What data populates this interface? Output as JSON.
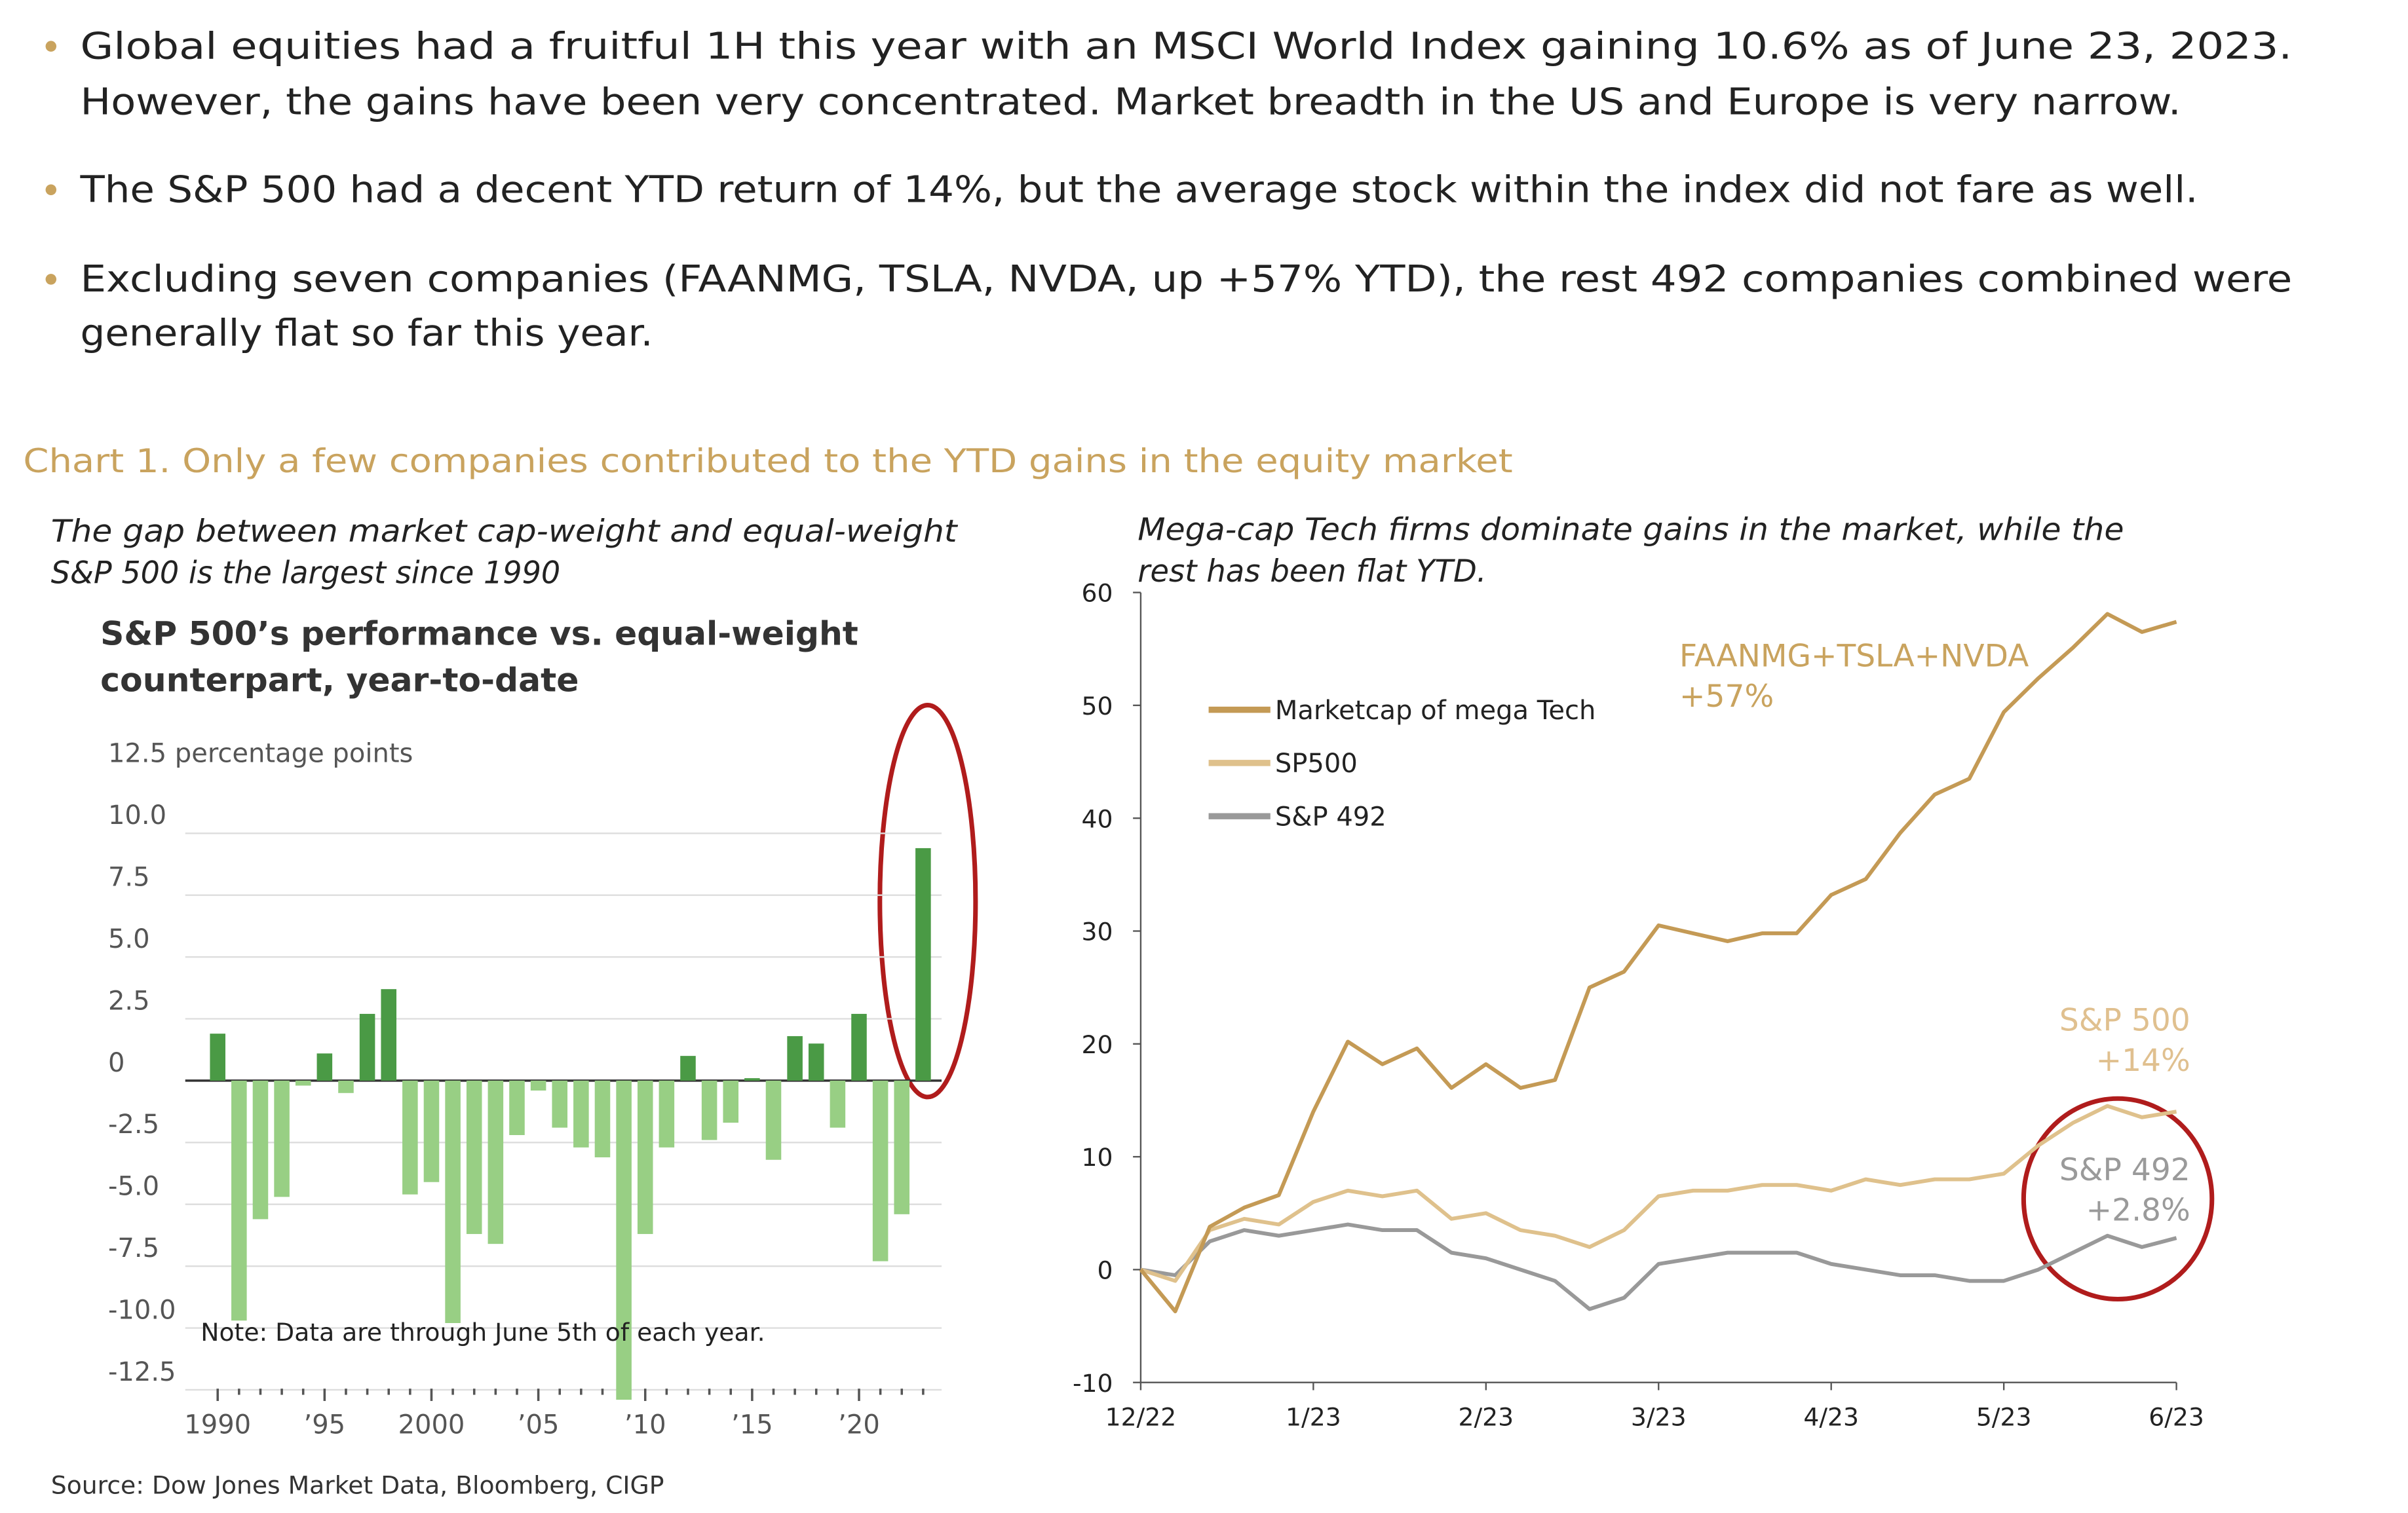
{
  "bullets": [
    {
      "lines": [
        "Global equities had a fruitful 1H this year with an MSCI World Index gaining 10.6% as of June 23, 2023.",
        "However, the gains have been very concentrated. Market breadth in the US and Europe is very narrow."
      ]
    },
    {
      "lines": [
        "The S&P 500 had a decent YTD return of 14%, but the average stock within the index did not fare as well."
      ]
    },
    {
      "lines": [
        "Excluding seven companies (FAANMG, TSLA, NVDA, up +57% YTD), the rest 492 companies combined were",
        "generally flat so far this year."
      ]
    }
  ],
  "chart_caption": "Chart 1. Only a few companies contributed to the YTD gains in the equity market",
  "source": "Source: Dow Jones Market Data, Bloomberg, CIGP",
  "chart_data": [
    {
      "type": "bar",
      "subtitle": [
        "The gap between market cap-weight and equal-weight",
        "S&P 500 is the largest since 1990"
      ],
      "title": [
        "S&P 500’s performance vs. equal-weight",
        "counterpart, year-to-date"
      ],
      "note": "Note: Data are through June 5th of each year.",
      "categories": [
        "1990",
        null,
        null,
        null,
        null,
        "’95",
        null,
        null,
        null,
        null,
        "2000",
        null,
        null,
        null,
        null,
        "’05",
        null,
        null,
        null,
        null,
        "’10",
        null,
        null,
        null,
        null,
        "’15",
        null,
        null,
        null,
        null,
        "’20",
        null,
        null,
        null
      ],
      "values": [
        1.9,
        -9.7,
        -5.6,
        -4.7,
        -0.2,
        1.1,
        -0.5,
        2.7,
        3.7,
        -4.6,
        -4.1,
        -9.8,
        -6.2,
        -6.6,
        -2.2,
        -0.4,
        -1.9,
        -2.7,
        -3.1,
        -12.9,
        -6.2,
        -2.7,
        1.0,
        -2.4,
        -1.7,
        0.1,
        -3.2,
        1.8,
        1.5,
        -1.9,
        2.7,
        -7.3,
        -5.4,
        9.4
      ],
      "color": "#4a9a45",
      "negative_color": "#98cf84",
      "ylim": [
        -13.2,
        12.5
      ],
      "yticks": [
        {
          "value": 12.5,
          "label": "12.5 percentage points"
        },
        {
          "value": 10,
          "label": "10.0"
        },
        7.5,
        {
          "value": 5,
          "label": "5.0"
        },
        2.5,
        0,
        -2.5,
        {
          "value": -5,
          "label": "-5.0"
        },
        -7.5,
        {
          "value": -10,
          "label": "-10.0"
        },
        -12.5
      ],
      "grid": true
    },
    {
      "type": "line",
      "subtitle": [
        "Mega-cap Tech firms dominate gains in the market, while the",
        "rest has been flat YTD."
      ],
      "x": [
        0,
        0.2,
        0.4,
        0.6,
        0.8,
        1.0,
        1.2,
        1.4,
        1.6,
        1.8,
        2.0,
        2.2,
        2.4,
        2.6,
        2.8,
        3.0,
        3.2,
        3.4,
        3.6,
        3.8,
        4.0,
        4.2,
        4.4,
        4.6,
        4.8,
        5.0,
        5.2,
        5.4,
        5.6,
        5.8,
        6.0
      ],
      "xlim": [
        0,
        6
      ],
      "xticks": [
        {
          "value": 0,
          "label": "12/22"
        },
        {
          "value": 1,
          "label": "1/23"
        },
        {
          "value": 2,
          "label": "2/23"
        },
        {
          "value": 3,
          "label": "3/23"
        },
        {
          "value": 4,
          "label": "4/23"
        },
        {
          "value": 5,
          "label": "5/23"
        },
        {
          "value": 6,
          "label": "6/23"
        }
      ],
      "ylim": [
        -10,
        60
      ],
      "yticks": [
        -10,
        0,
        10,
        20,
        30,
        40,
        50,
        60
      ],
      "series": [
        {
          "name": "Marketcap of mega Tech",
          "color": "#c49a55",
          "values": [
            0,
            -3.7,
            3.8,
            5.5,
            6.6,
            14,
            20.2,
            18.2,
            19.6,
            16.1,
            18.2,
            16.1,
            16.8,
            25,
            26.4,
            30.5,
            29.8,
            29.1,
            29.8,
            29.8,
            33.2,
            34.6,
            38.7,
            42.1,
            43.5,
            49.4,
            52.4,
            55.1,
            58.1,
            56.5,
            57.4
          ]
        },
        {
          "name": "SP500",
          "color": "#dfc18c",
          "values": [
            0,
            -1,
            3.5,
            4.5,
            4,
            6,
            7,
            6.5,
            7,
            4.5,
            5,
            3.5,
            3,
            2,
            3.5,
            6.5,
            7,
            7,
            7.5,
            7.5,
            7,
            8,
            7.5,
            8,
            8,
            8.5,
            11,
            13,
            14.5,
            13.5,
            14
          ]
        },
        {
          "name": "S&P 492",
          "color": "#999999",
          "values": [
            0,
            -0.5,
            2.5,
            3.5,
            3,
            3.5,
            4,
            3.5,
            3.5,
            1.5,
            1,
            0,
            -1,
            -3.5,
            -2.5,
            0.5,
            1,
            1.5,
            1.5,
            1.5,
            0.5,
            0,
            -0.5,
            -0.5,
            -1,
            -1,
            0,
            1.5,
            3,
            2,
            2.8
          ]
        }
      ],
      "annotations": [
        {
          "lines": [
            "FAANMG+TSLA+NVDA",
            "+57%"
          ],
          "color": "#c9a35e"
        },
        {
          "lines": [
            "S&P 500",
            "+14%"
          ],
          "color": "#e0c08f"
        },
        {
          "lines": [
            "S&P 492",
            "+2.8%"
          ],
          "color": "#9a9a9a"
        }
      ]
    }
  ]
}
